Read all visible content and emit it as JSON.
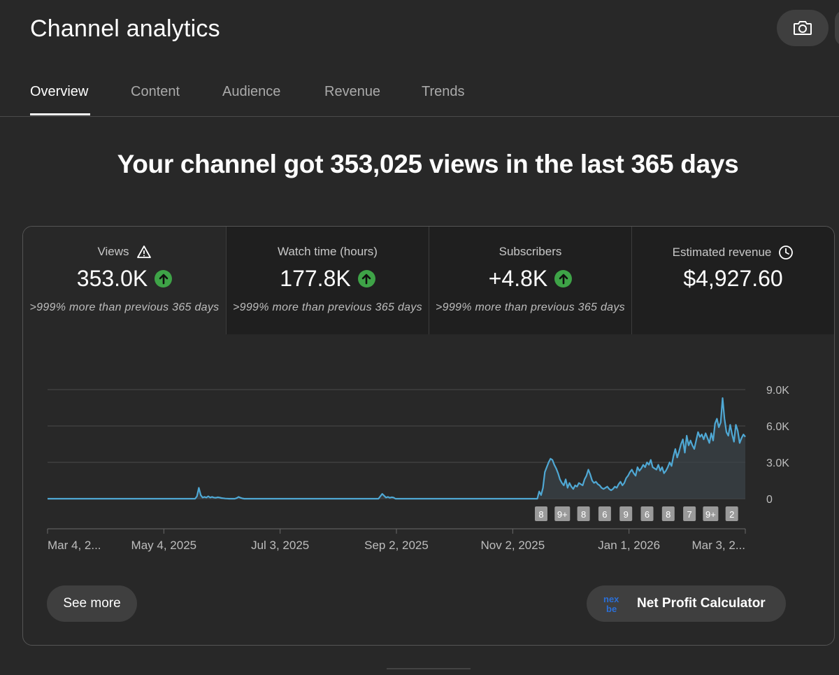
{
  "header": {
    "title": "Channel analytics",
    "camera_icon": "camera-icon"
  },
  "tabs": [
    {
      "label": "Overview",
      "active": true
    },
    {
      "label": "Content",
      "active": false
    },
    {
      "label": "Audience",
      "active": false
    },
    {
      "label": "Revenue",
      "active": false
    },
    {
      "label": "Trends",
      "active": false
    }
  ],
  "headline": "Your channel got 353,025 views in the last 365 days",
  "metrics": [
    {
      "label": "Views",
      "value": "353.0K",
      "change": ">999% more than previous 365 days",
      "icon": "warning-icon",
      "trend": "up"
    },
    {
      "label": "Watch time (hours)",
      "value": "177.8K",
      "change": ">999% more than previous 365 days",
      "trend": "up"
    },
    {
      "label": "Subscribers",
      "value": "+4.8K",
      "change": ">999% more than previous 365 days",
      "trend": "up"
    },
    {
      "label": "Estimated revenue",
      "value": "$4,927.60",
      "icon": "clock-icon"
    }
  ],
  "chart_data": {
    "type": "area",
    "series": [
      {
        "values": [
          0,
          0,
          0,
          0,
          0,
          0,
          0,
          0,
          0,
          0,
          0,
          0,
          0,
          0,
          0,
          0,
          0,
          0,
          0,
          0,
          0,
          0,
          0,
          0,
          0,
          0,
          0,
          0,
          0,
          0,
          0,
          0,
          0,
          0,
          0,
          0,
          0,
          0,
          0,
          0,
          0,
          0,
          0,
          0,
          0,
          0,
          0,
          0,
          0,
          0,
          0,
          0,
          0,
          0,
          0,
          0,
          0,
          0,
          0,
          0,
          0,
          0,
          0,
          0,
          0,
          0,
          0,
          0,
          0,
          0,
          0,
          0,
          0,
          0,
          0,
          0,
          0,
          0,
          0,
          200,
          900,
          300,
          100,
          150,
          100,
          200,
          100,
          150,
          100,
          80,
          120,
          100,
          60,
          40,
          20,
          10,
          0,
          0,
          0,
          0,
          50,
          150,
          80,
          30,
          0,
          0,
          0,
          0,
          0,
          0,
          0,
          0,
          0,
          0,
          0,
          0,
          0,
          0,
          0,
          0,
          0,
          0,
          0,
          0,
          0,
          0,
          0,
          0,
          0,
          0,
          0,
          0,
          0,
          0,
          0,
          0,
          0,
          0,
          0,
          0,
          0,
          0,
          0,
          0,
          0,
          0,
          0,
          0,
          0,
          0,
          0,
          0,
          0,
          0,
          0,
          0,
          0,
          0,
          0,
          0,
          0,
          0,
          0,
          0,
          0,
          0,
          0,
          0,
          0,
          0,
          0,
          0,
          0,
          0,
          0,
          0,
          200,
          400,
          250,
          100,
          150,
          80,
          120,
          100,
          0,
          0,
          0,
          0,
          0,
          0,
          0,
          0,
          0,
          0,
          0,
          0,
          0,
          0,
          0,
          0,
          0,
          0,
          0,
          0,
          0,
          0,
          0,
          0,
          0,
          0,
          0,
          0,
          0,
          0,
          0,
          0,
          0,
          0,
          0,
          0,
          0,
          0,
          0,
          0,
          0,
          0,
          0,
          0,
          0,
          0,
          0,
          0,
          0,
          0,
          0,
          0,
          0,
          0,
          0,
          0,
          0,
          0,
          0,
          0,
          0,
          0,
          0,
          0,
          0,
          0,
          0,
          0,
          0,
          0,
          0,
          0,
          0,
          0,
          0,
          0,
          600,
          300,
          900,
          2200,
          2600,
          3000,
          3300,
          3200,
          2800,
          2500,
          2100,
          1600,
          1300,
          1100,
          1600,
          900,
          1300,
          1000,
          800,
          1100,
          1000,
          1300,
          1200,
          1100,
          1600,
          1900,
          2400,
          2000,
          1500,
          1300,
          1400,
          1200,
          1100,
          900,
          800,
          900,
          1000,
          800,
          700,
          800,
          1000,
          900,
          1200,
          1400,
          1100,
          1300,
          1700,
          1900,
          2200,
          2400,
          2100,
          1900,
          2600,
          2300,
          2500,
          2800,
          2600,
          3000,
          2800,
          3200,
          2600,
          2500,
          2400,
          2800,
          2300,
          2600,
          2100,
          2300,
          2600,
          3000,
          2700,
          3500,
          4100,
          3400,
          3900,
          4500,
          4900,
          3800,
          5200,
          4400,
          4800,
          4400,
          4100,
          4800,
          5500,
          5100,
          5300,
          4900,
          5400,
          5000,
          4600,
          5400,
          4800,
          6200,
          6600,
          5900,
          6300,
          8300,
          6600,
          5500,
          5200,
          6100,
          5300,
          4700,
          6100,
          5600,
          4600,
          5000,
          5300,
          5100
        ]
      }
    ],
    "ylim": [
      0,
      9000
    ],
    "yticks": [
      "9.0K",
      "6.0K",
      "3.0K",
      "0"
    ],
    "xticks": [
      "Mar 4, 2...",
      "May 4, 2025",
      "Jul 3, 2025",
      "Sep 2, 2025",
      "Nov 2, 2025",
      "Jan 1, 2026",
      "Mar 3, 2..."
    ],
    "markers": [
      "8",
      "9+",
      "8",
      "6",
      "9",
      "6",
      "8",
      "7",
      "9+",
      "2"
    ],
    "grid": true,
    "colors": {
      "line": "#4fa8d4",
      "area": "#3a4348",
      "grid": "#4a4a4a"
    }
  },
  "buttons": {
    "see_more": "See more",
    "net_profit": "Net Profit Calculator"
  },
  "net_profit_logo": {
    "text_top": "nex",
    "text_bottom": "be"
  }
}
